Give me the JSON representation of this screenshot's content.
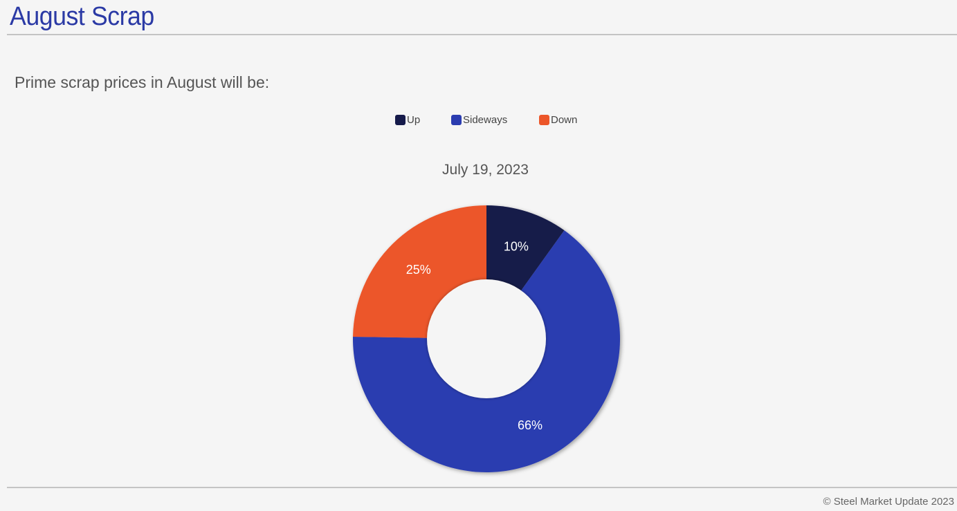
{
  "header": {
    "title": "August Scrap",
    "subtitle": "Prime scrap prices in August will be:"
  },
  "chart_data": {
    "type": "pie",
    "variant": "donut",
    "title": "July 19, 2023",
    "categories": [
      "Up",
      "Sideways",
      "Down"
    ],
    "values": [
      10,
      66,
      25
    ],
    "labels": [
      "10%",
      "66%",
      "25%"
    ],
    "colors": [
      "#151a4a",
      "#2b3cb0",
      "#ec5629"
    ],
    "legend_position": "top-center",
    "start": "top",
    "direction": "clockwise"
  },
  "footer": {
    "copyright": "© Steel Market Update 2023"
  }
}
